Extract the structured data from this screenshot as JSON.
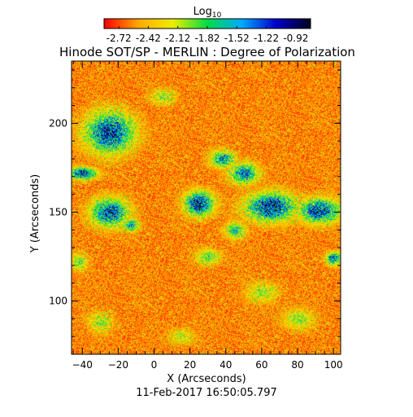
{
  "chart_data": {
    "type": "heatmap",
    "title": "Hinode SOT/SP - MERLIN : Degree of Polarization",
    "subtitle": "11-Feb-2017 16:50:05.797",
    "xlabel": "X (Arcseconds)",
    "ylabel": "Y (Arcseconds)",
    "xlim": [
      -46,
      104
    ],
    "ylim": [
      70,
      235
    ],
    "xticks": [
      -40,
      -20,
      0,
      20,
      40,
      60,
      80,
      100
    ],
    "yticks": [
      100,
      150,
      200
    ],
    "colorbar": {
      "label_base": "Log",
      "label_sub": "10",
      "range": [
        -2.87,
        -0.77
      ],
      "ticks": [
        "-2.72",
        "-2.42",
        "-2.12",
        "-1.82",
        "-1.52",
        "-1.22",
        "-0.92"
      ],
      "colors": [
        "#ff0000",
        "#ffaa00",
        "#eeee00",
        "#00dd44",
        "#00aaff",
        "#0000cc",
        "#000020"
      ]
    },
    "strong_regions": [
      {
        "x": -25,
        "y": 195,
        "rx": 12,
        "ry": 10,
        "level": 0.95
      },
      {
        "x": -40,
        "y": 172,
        "rx": 7,
        "ry": 3,
        "level": 0.9
      },
      {
        "x": -25,
        "y": 150,
        "rx": 9,
        "ry": 7,
        "level": 0.9
      },
      {
        "x": -13,
        "y": 143,
        "rx": 4,
        "ry": 3,
        "level": 0.7
      },
      {
        "x": 25,
        "y": 155,
        "rx": 7,
        "ry": 6,
        "level": 1.0
      },
      {
        "x": 38,
        "y": 180,
        "rx": 6,
        "ry": 4,
        "level": 0.75
      },
      {
        "x": 50,
        "y": 172,
        "rx": 7,
        "ry": 5,
        "level": 0.8
      },
      {
        "x": 65,
        "y": 153,
        "rx": 12,
        "ry": 7,
        "level": 1.0
      },
      {
        "x": 92,
        "y": 151,
        "rx": 10,
        "ry": 6,
        "level": 0.95
      },
      {
        "x": 100,
        "y": 124,
        "rx": 4,
        "ry": 3,
        "level": 0.85
      },
      {
        "x": 45,
        "y": 140,
        "rx": 5,
        "ry": 4,
        "level": 0.6
      },
      {
        "x": 30,
        "y": 125,
        "rx": 6,
        "ry": 4,
        "level": 0.45
      },
      {
        "x": -42,
        "y": 122,
        "rx": 4,
        "ry": 4,
        "level": 0.45
      },
      {
        "x": 5,
        "y": 215,
        "rx": 6,
        "ry": 4,
        "level": 0.35
      },
      {
        "x": 60,
        "y": 105,
        "rx": 8,
        "ry": 5,
        "level": 0.35
      },
      {
        "x": -30,
        "y": 88,
        "rx": 6,
        "ry": 5,
        "level": 0.35
      },
      {
        "x": 80,
        "y": 90,
        "rx": 8,
        "ry": 5,
        "level": 0.35
      },
      {
        "x": 15,
        "y": 80,
        "rx": 6,
        "ry": 4,
        "level": 0.3
      }
    ]
  }
}
